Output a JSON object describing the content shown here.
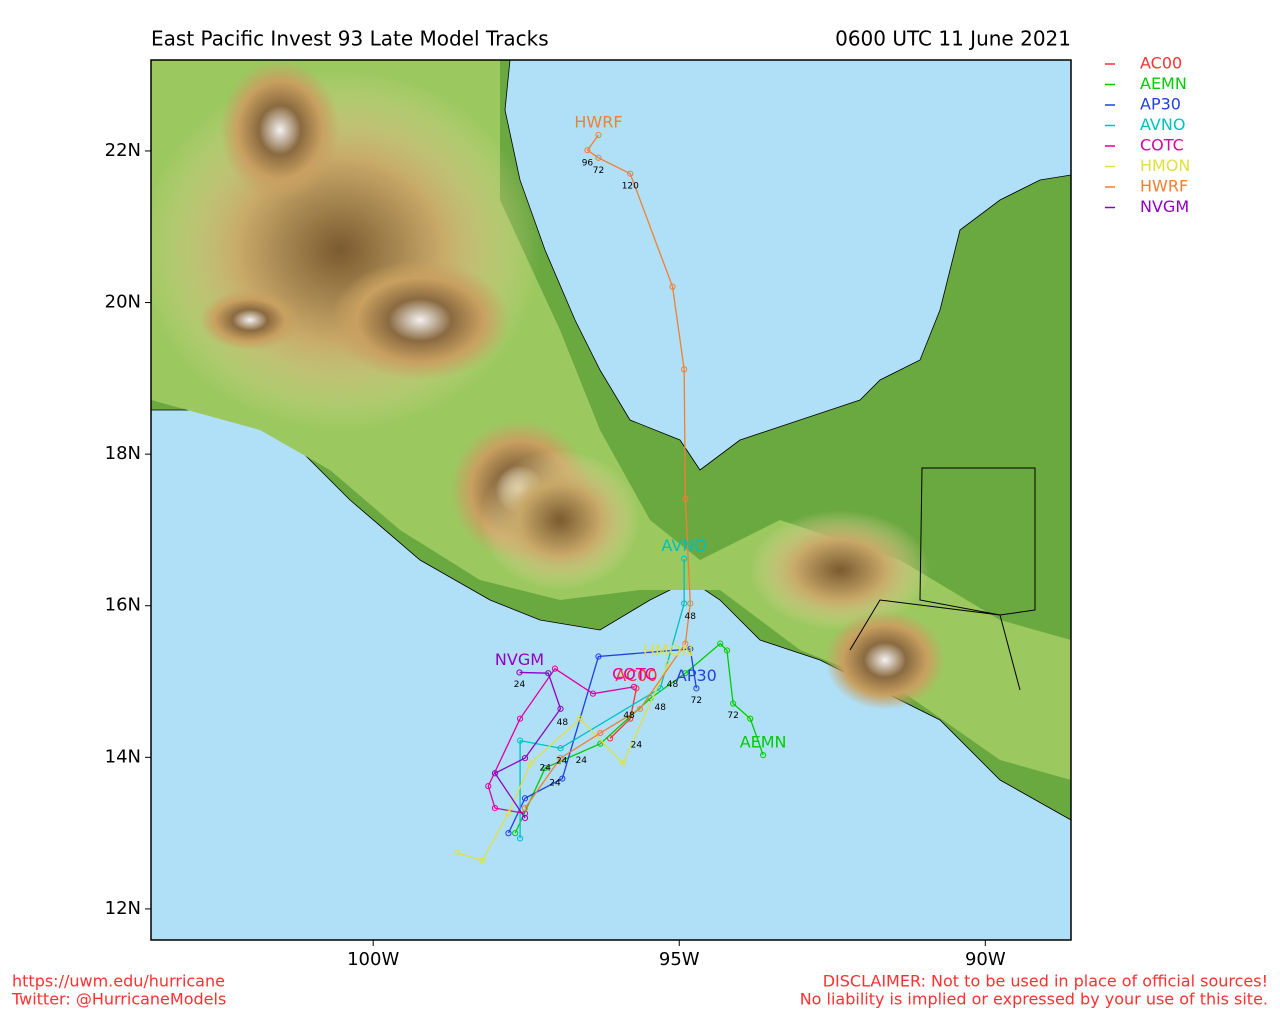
{
  "chart_data": {
    "type": "map",
    "title": "East Pacific Invest 93 Late Model Tracks",
    "subtitle": "0600 UTC 11 June 2021",
    "footer_left": [
      "https://uwm.edu/hurricane",
      "Twitter: @HurricaneModels"
    ],
    "footer_right": [
      "DISCLAIMER: Not to be used in place of official sources!",
      "No liability is implied or expressed by your use of this site."
    ],
    "xlim": [
      -103.63,
      -88.6
    ],
    "ylim": [
      11.59,
      23.2
    ],
    "xticks": [
      {
        "value": -100,
        "label": "100W"
      },
      {
        "value": -95,
        "label": "95W"
      },
      {
        "value": -90,
        "label": "90W"
      }
    ],
    "yticks": [
      {
        "value": 12,
        "label": "12N"
      },
      {
        "value": 14,
        "label": "14N"
      },
      {
        "value": 16,
        "label": "16N"
      },
      {
        "value": 18,
        "label": "18N"
      },
      {
        "value": 20,
        "label": "20N"
      },
      {
        "value": 22,
        "label": "22N"
      }
    ],
    "legend": "outside-right",
    "series": [
      {
        "name": "AC00",
        "color": "#ff3030",
        "x": [
          -96.13,
          -95.8,
          -95.7
        ],
        "values": [
          14.25,
          14.51,
          14.91
        ]
      },
      {
        "name": "AEMN",
        "color": "#00cc00",
        "x": [
          -97.68,
          -97.19,
          -96.29,
          -95.47,
          -94.9,
          -94.33,
          -94.22,
          -94.12,
          -93.84,
          -93.63
        ],
        "values": [
          13.0,
          13.86,
          14.18,
          14.78,
          15.11,
          15.5,
          15.41,
          14.71,
          14.51,
          14.03
        ]
      },
      {
        "name": "AP30",
        "color": "#2040e0",
        "x": [
          -97.79,
          -97.52,
          -96.91,
          -96.32,
          -94.82,
          -94.72
        ],
        "values": [
          13.0,
          13.46,
          13.72,
          15.33,
          15.43,
          14.91
        ]
      },
      {
        "name": "AVNO",
        "color": "#00c0c0",
        "x": [
          -97.6,
          -97.6,
          -96.94,
          -95.31,
          -94.92,
          -94.92
        ],
        "values": [
          12.93,
          14.22,
          14.12,
          14.91,
          16.03,
          16.62
        ]
      },
      {
        "name": "COTC",
        "color": "#e000a0",
        "x": [
          -97.52,
          -98.01,
          -98.12,
          -97.6,
          -97.03,
          -96.41,
          -95.74
        ],
        "values": [
          13.26,
          13.33,
          13.62,
          14.51,
          15.17,
          14.84,
          14.93
        ]
      },
      {
        "name": "HMON",
        "color": "#e0e040",
        "x": [
          -98.63,
          -98.22,
          -97.79,
          -97.43,
          -96.62,
          -95.92,
          -95.18
        ],
        "values": [
          12.74,
          12.64,
          13.26,
          13.92,
          14.51,
          13.92,
          15.24
        ]
      },
      {
        "name": "HWRF",
        "color": "#f08030",
        "x": [
          -97.52,
          -96.94,
          -96.29,
          -95.64,
          -94.9,
          -94.82,
          -94.9,
          -94.92,
          -95.11,
          -95.8,
          -96.32,
          -96.5,
          -96.32
        ],
        "values": [
          13.33,
          13.99,
          14.32,
          14.64,
          15.5,
          16.03,
          17.41,
          19.12,
          20.21,
          21.7,
          21.91,
          22.01,
          22.21
        ]
      },
      {
        "name": "NVGM",
        "color": "#9000c0",
        "x": [
          -97.52,
          -98.01,
          -97.52,
          -96.94,
          -97.14,
          -97.61
        ],
        "values": [
          13.2,
          13.79,
          13.99,
          14.64,
          15.11,
          15.12
        ]
      }
    ],
    "hour_labels": [
      {
        "label": "96",
        "x": -96.5,
        "y": 21.84
      },
      {
        "label": "72",
        "x": -96.32,
        "y": 21.74
      },
      {
        "label": "120",
        "x": -95.8,
        "y": 21.54
      },
      {
        "label": "48",
        "x": -94.82,
        "y": 15.86
      },
      {
        "label": "72",
        "x": -94.12,
        "y": 14.55
      },
      {
        "label": "72",
        "x": -94.72,
        "y": 14.75
      },
      {
        "label": "48",
        "x": -95.11,
        "y": 14.96
      },
      {
        "label": "48",
        "x": -95.31,
        "y": 14.66
      },
      {
        "label": "48",
        "x": -95.82,
        "y": 14.55
      },
      {
        "label": "48",
        "x": -96.91,
        "y": 14.46
      },
      {
        "label": "24",
        "x": -97.61,
        "y": 14.96
      },
      {
        "label": "24",
        "x": -95.7,
        "y": 14.16
      },
      {
        "label": "24",
        "x": -96.92,
        "y": 13.95
      },
      {
        "label": "24",
        "x": -96.6,
        "y": 13.96
      },
      {
        "label": "24",
        "x": -97.19,
        "y": 13.86
      },
      {
        "label": "24",
        "x": -97.03,
        "y": 13.66
      }
    ]
  }
}
